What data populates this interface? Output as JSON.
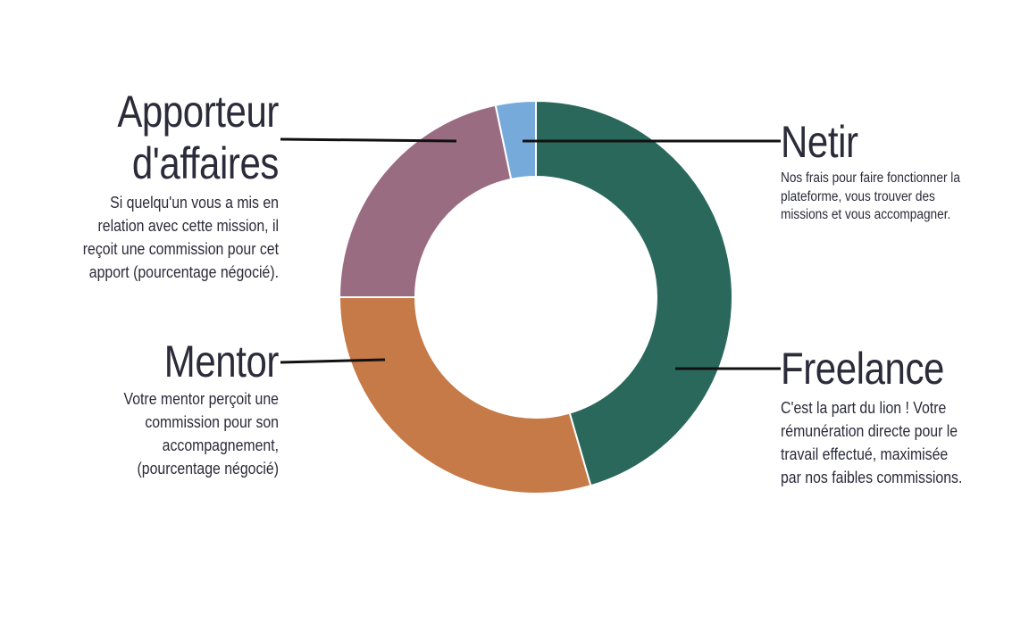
{
  "chart_data": {
    "type": "pie",
    "style": "donut",
    "slices": [
      {
        "label": "Freelance",
        "value": 45.5,
        "color": "#2a685c"
      },
      {
        "label": "Mentor",
        "value": 29.5,
        "color": "#c57a47"
      },
      {
        "label": "Apporteur d'affaires",
        "value": 21.7,
        "color": "#9a6c82"
      },
      {
        "label": "Netir",
        "value": 3.3,
        "color": "#76aadb"
      }
    ]
  },
  "labels": {
    "apporteur": {
      "title_line1": "Apporteur",
      "title_line2": "d'affaires",
      "desc_lines": [
        "Si quelqu'un vous a mis en",
        "relation avec cette mission, il",
        "reçoit une commission pour cet",
        "apport (pourcentage négocié)."
      ]
    },
    "mentor": {
      "title": "Mentor",
      "desc_lines": [
        "Votre mentor perçoit une",
        "commission pour son",
        "accompagnement,",
        "(pourcentage négocié)"
      ]
    },
    "netir": {
      "title": "Netir",
      "desc_lines": [
        "Nos frais pour faire fonctionner la",
        "plateforme, vous trouver des",
        "missions et vous accompagner."
      ]
    },
    "freelance": {
      "title": "Freelance",
      "desc_lines": [
        "C'est la part du lion ! Votre",
        "rémunération directe pour le",
        "travail effectué, maximisée",
        "par nos faibles commissions."
      ]
    }
  }
}
